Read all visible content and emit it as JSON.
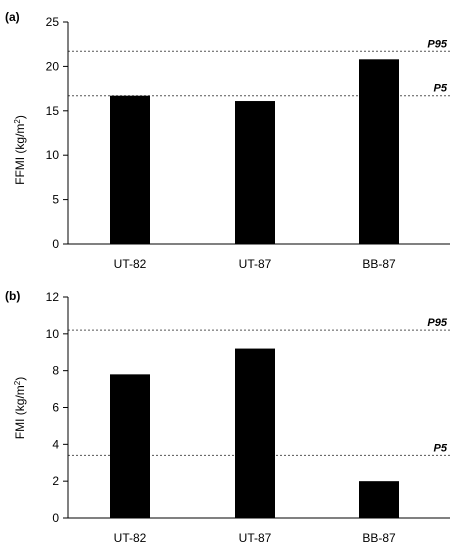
{
  "chart_data": [
    {
      "panel_label": "(a)",
      "type": "bar",
      "categories": [
        "UT-82",
        "UT-87",
        "BB-87"
      ],
      "values": [
        16.7,
        16.1,
        20.8
      ],
      "ylabel_main": "FFMI (kg/m",
      "ylabel_sup": "2",
      "ylabel_end": ")",
      "ylim": [
        0,
        25
      ],
      "yticks": [
        0,
        5,
        10,
        15,
        20,
        25
      ],
      "grid": false,
      "bar_color": "#000000",
      "reference_lines": [
        {
          "label": "P95",
          "value": 21.7
        },
        {
          "label": "P5",
          "value": 16.7
        }
      ]
    },
    {
      "panel_label": "(b)",
      "type": "bar",
      "categories": [
        "UT-82",
        "UT-87",
        "BB-87"
      ],
      "values": [
        7.8,
        9.2,
        2.0
      ],
      "ylabel_main": "FMI (kg/m",
      "ylabel_sup": "2",
      "ylabel_end": ")",
      "ylim": [
        0,
        12
      ],
      "yticks": [
        0,
        2,
        4,
        6,
        8,
        10,
        12
      ],
      "grid": false,
      "bar_color": "#000000",
      "reference_lines": [
        {
          "label": "P95",
          "value": 10.2
        },
        {
          "label": "P5",
          "value": 3.4
        }
      ]
    }
  ]
}
